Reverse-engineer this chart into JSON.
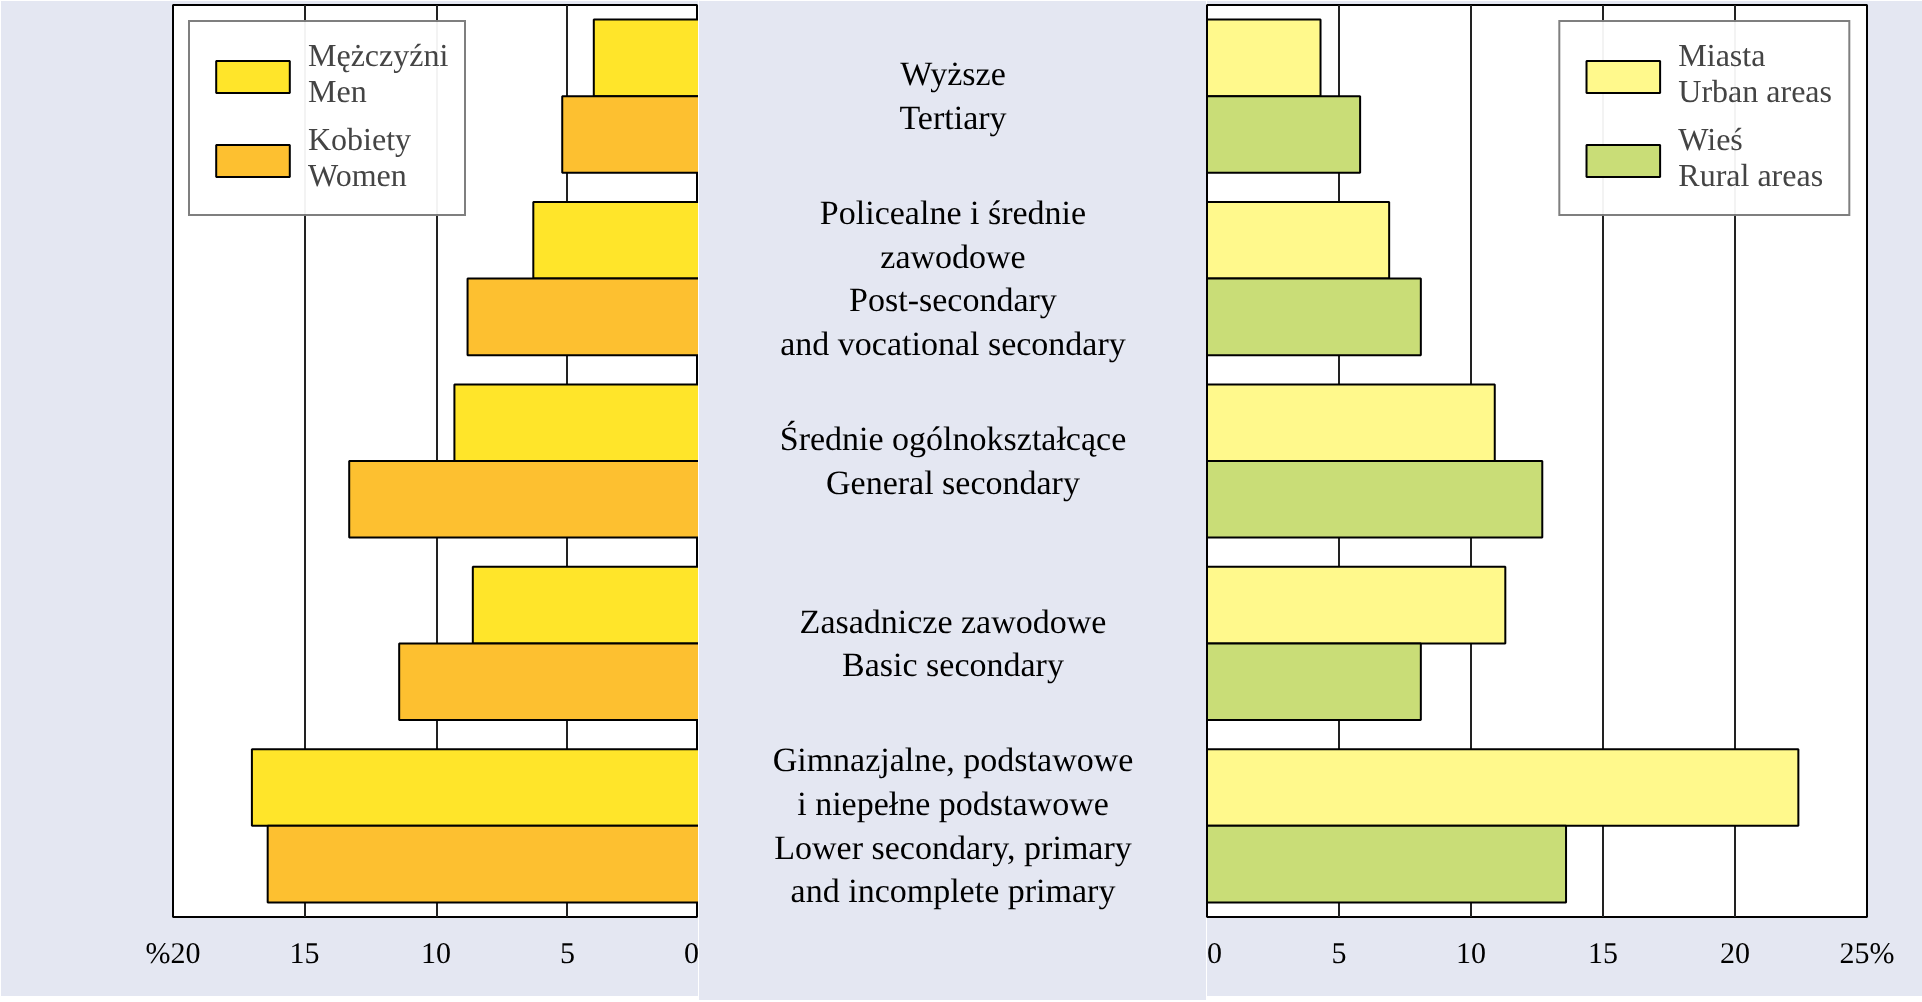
{
  "chart_data": [
    {
      "type": "bar",
      "orientation": "horizontal",
      "categories": [
        "Wyższe\nTertiary",
        "Policealne i średnie\nzawodowe\nPost-secondary\nand vocational secondary",
        "Średnie ogólnokształcące\nGeneral secondary",
        "Zasadnicze zawodowe\nBasic secondary",
        "Gimnazjalne, podstawowe\ni niepełne podstawowe\nLower secondary, primary\nand incomplete primary"
      ],
      "series": [
        {
          "name": "Mężczyźni\nMen",
          "color": "#ffe52a",
          "values": [
            4.0,
            6.3,
            9.3,
            8.6,
            17.0
          ]
        },
        {
          "name": "Kobiety\nWomen",
          "color": "#fdc030",
          "values": [
            5.2,
            8.8,
            13.3,
            11.4,
            16.4
          ]
        }
      ],
      "xlim": [
        20,
        0
      ],
      "xticks": [
        {
          "value": 20,
          "label": "%20"
        },
        15,
        10,
        5,
        0
      ],
      "grid": "x",
      "legend": "top left"
    },
    {
      "type": "bar",
      "orientation": "horizontal",
      "categories": [
        null,
        null,
        null,
        null,
        null
      ],
      "series": [
        {
          "name": "Miasta\nUrban areas",
          "color": "#fff98c",
          "values": [
            4.3,
            6.9,
            10.9,
            11.3,
            22.4
          ]
        },
        {
          "name": "Wieś\nRural areas",
          "color": "#c9dd77",
          "values": [
            5.8,
            8.1,
            12.7,
            8.1,
            13.6
          ]
        }
      ],
      "xlim": [
        0,
        25
      ],
      "xticks": [
        0,
        5,
        10,
        15,
        20,
        {
          "value": 25,
          "label": "25%"
        }
      ],
      "grid": "x",
      "legend": "top right"
    }
  ]
}
